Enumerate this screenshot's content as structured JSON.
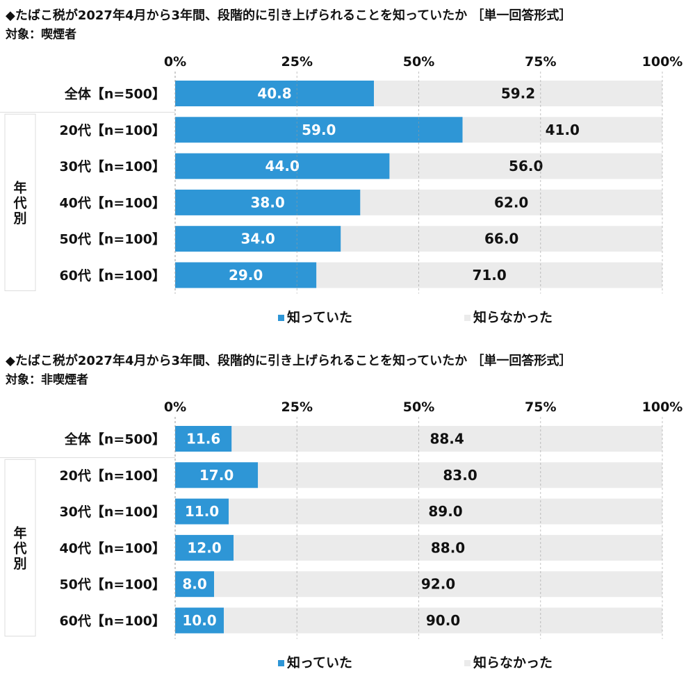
{
  "chart_data": [
    {
      "type": "bar",
      "title": "◆たばこ税が2027年4月から3年間、段階的に引き上げられることを知っていたか ［単一回答形式］",
      "subtitle": "対象：喫煙者",
      "categories": [
        "全体【n=500】",
        "20代【n=100】",
        "30代【n=100】",
        "40代【n=100】",
        "50代【n=100】",
        "60代【n=100】"
      ],
      "group_label": "年代別",
      "x_ticks": [
        "0%",
        "25%",
        "50%",
        "75%",
        "100%"
      ],
      "xlim": [
        0,
        100
      ],
      "stacked": true,
      "series": [
        {
          "name": "知っていた",
          "color": "#2e96d6",
          "values": [
            40.8,
            59.0,
            44.0,
            38.0,
            34.0,
            29.0
          ],
          "labels": [
            "40.8",
            "59.0",
            "44.0",
            "38.0",
            "34.0",
            "29.0"
          ]
        },
        {
          "name": "知らなかった",
          "color": "#ebebeb",
          "values": [
            59.2,
            41.0,
            56.0,
            62.0,
            66.0,
            71.0
          ],
          "labels": [
            "59.2",
            "41.0",
            "56.0",
            "62.0",
            "66.0",
            "71.0"
          ]
        }
      ],
      "grid": true,
      "legend": "bottom-center"
    },
    {
      "type": "bar",
      "title": "◆たばこ税が2027年4月から3年間、段階的に引き上げられることを知っていたか ［単一回答形式］",
      "subtitle": "対象：非喫煙者",
      "categories": [
        "全体【n=500】",
        "20代【n=100】",
        "30代【n=100】",
        "40代【n=100】",
        "50代【n=100】",
        "60代【n=100】"
      ],
      "group_label": "年代別",
      "x_ticks": [
        "0%",
        "25%",
        "50%",
        "75%",
        "100%"
      ],
      "xlim": [
        0,
        100
      ],
      "stacked": true,
      "series": [
        {
          "name": "知っていた",
          "color": "#2e96d6",
          "values": [
            11.6,
            17.0,
            11.0,
            12.0,
            8.0,
            10.0
          ],
          "labels": [
            "11.6",
            "17.0",
            "11.0",
            "12.0",
            "8.0",
            "10.0"
          ]
        },
        {
          "name": "知らなかった",
          "color": "#ebebeb",
          "values": [
            88.4,
            83.0,
            89.0,
            88.0,
            92.0,
            90.0
          ],
          "labels": [
            "88.4",
            "83.0",
            "89.0",
            "88.0",
            "92.0",
            "90.0"
          ]
        }
      ],
      "grid": true,
      "legend": "bottom-center"
    }
  ]
}
